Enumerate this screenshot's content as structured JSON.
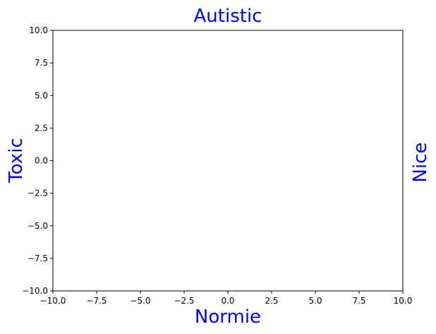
{
  "chart_data": {
    "type": "scatter",
    "series": [],
    "x": [],
    "title": "Autistic",
    "xlabel": "Normie",
    "ylabel_left": "Toxic",
    "ylabel_right": "Nice",
    "xlim": [
      -10,
      10
    ],
    "ylim": [
      -10,
      10
    ],
    "xticks": [
      -10,
      -7.5,
      -5,
      -2.5,
      0,
      2.5,
      5,
      7.5,
      10
    ],
    "yticks": [
      -10,
      -7.5,
      -5,
      -2.5,
      0,
      2.5,
      5,
      7.5,
      10
    ],
    "xtick_labels": [
      "−10.0",
      "−7.5",
      "−5.0",
      "−2.5",
      "0.0",
      "2.5",
      "5.0",
      "7.5",
      "10.0"
    ],
    "ytick_labels": [
      "−10.0",
      "−7.5",
      "−5.0",
      "−2.5",
      "0.0",
      "2.5",
      "5.0",
      "7.5",
      "10.0"
    ],
    "grid": false,
    "colors": {
      "label": "#0000ee",
      "axis": "#000000",
      "background": "#ffffff"
    }
  }
}
